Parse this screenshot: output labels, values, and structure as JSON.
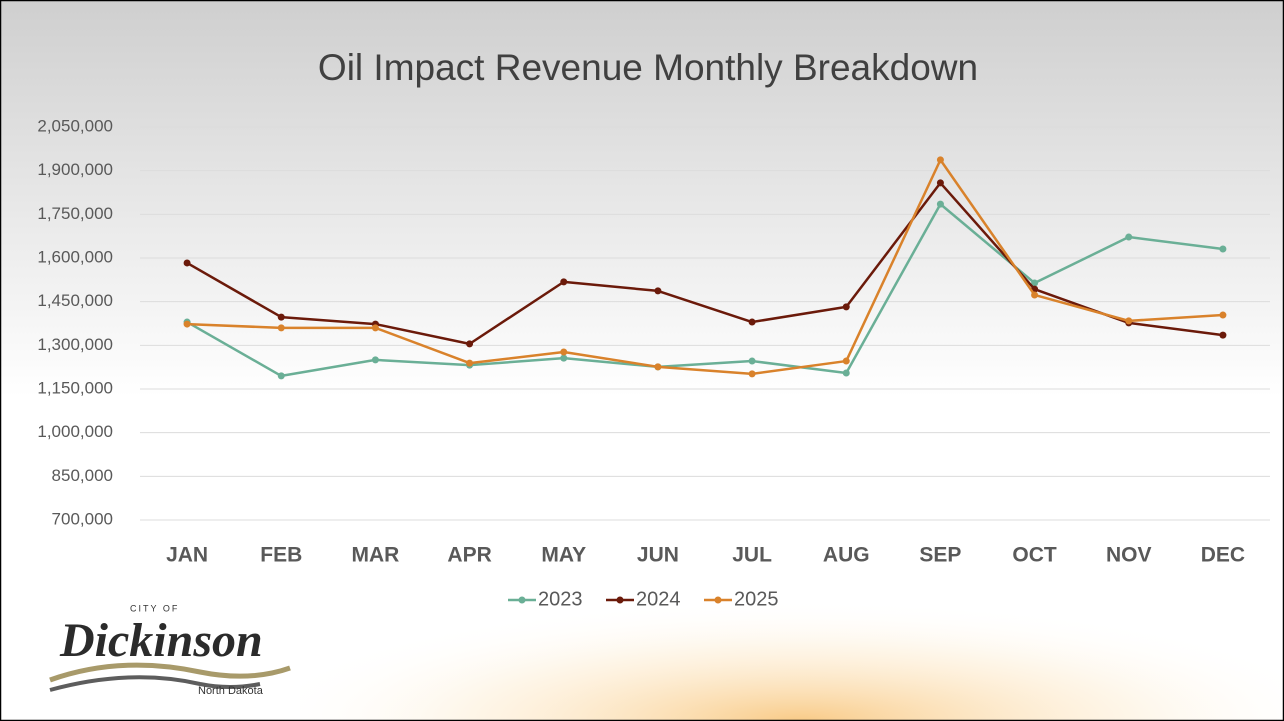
{
  "chart_data": {
    "type": "line",
    "title": "Oil Impact Revenue Monthly Breakdown",
    "categories": [
      "JAN",
      "FEB",
      "MAR",
      "APR",
      "MAY",
      "JUN",
      "JUL",
      "AUG",
      "SEP",
      "OCT",
      "NOV",
      "DEC"
    ],
    "series": [
      {
        "name": "2023",
        "color": "#6aaf96",
        "values": [
          1380000,
          1195000,
          1250000,
          1232000,
          1256000,
          1226000,
          1246000,
          1205000,
          1785000,
          1514000,
          1672000,
          1631000
        ]
      },
      {
        "name": "2024",
        "color": "#6b1a0a",
        "values": [
          1583000,
          1397000,
          1373000,
          1305000,
          1518000,
          1487000,
          1380000,
          1432000,
          1858000,
          1493000,
          1377000,
          1335000
        ]
      },
      {
        "name": "2025",
        "color": "#d9822b",
        "values": [
          1373000,
          1360000,
          1360000,
          1239000,
          1277000,
          1226000,
          1202000,
          1246000,
          1937000,
          1473000,
          1384000,
          1404000
        ]
      }
    ],
    "ylim": [
      700000,
      2050000
    ],
    "yticks": [
      {
        "value": 700000,
        "label": "700,000"
      },
      {
        "value": 850000,
        "label": "850,000"
      },
      {
        "value": 1000000,
        "label": "1,000,000"
      },
      {
        "value": 1150000,
        "label": "1,150,000"
      },
      {
        "value": 1300000,
        "label": "1,300,000"
      },
      {
        "value": 1450000,
        "label": "1,450,000"
      },
      {
        "value": 1600000,
        "label": "1,600,000"
      },
      {
        "value": 1750000,
        "label": "1,750,000"
      },
      {
        "value": 1900000,
        "label": "1,900,000"
      },
      {
        "value": 2050000,
        "label": "2,050,000"
      }
    ],
    "grid": true,
    "legend": "bottom"
  },
  "logo": {
    "top": "CITY OF",
    "name": "Dickinson",
    "sub": "North Dakota"
  }
}
